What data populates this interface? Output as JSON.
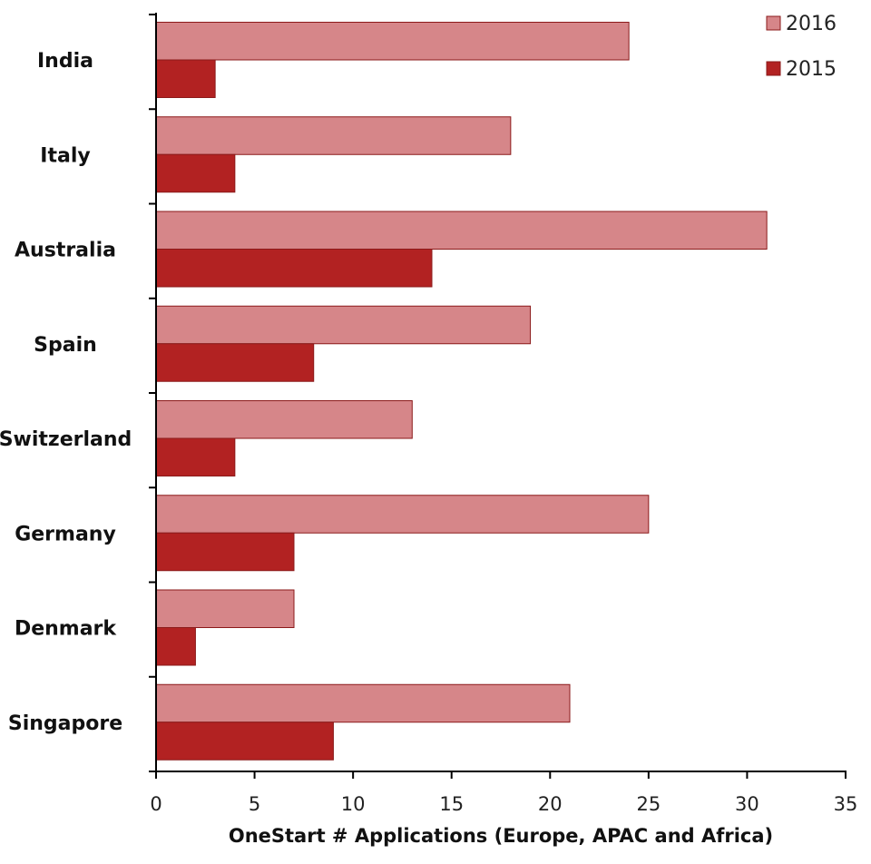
{
  "chart_data": {
    "type": "bar",
    "orientation": "horizontal",
    "title": "",
    "xlabel": "OneStart # Applications (Europe, APAC and Africa)",
    "ylabel": "",
    "xlim": [
      0,
      35
    ],
    "xticks": [
      0,
      5,
      10,
      15,
      20,
      25,
      30,
      35
    ],
    "grid": false,
    "legend_position": "top-right",
    "categories": [
      "India",
      "Italy",
      "Australia",
      "Spain",
      "Switzerland",
      "Germany",
      "Denmark",
      "Singapore"
    ],
    "series": [
      {
        "name": "2016",
        "color": "#D68689",
        "values": [
          24,
          18,
          31,
          19,
          13,
          25,
          7,
          21
        ]
      },
      {
        "name": "2015",
        "color": "#B22222",
        "values": [
          3,
          4,
          14,
          8,
          4,
          7,
          2,
          9
        ]
      }
    ]
  }
}
